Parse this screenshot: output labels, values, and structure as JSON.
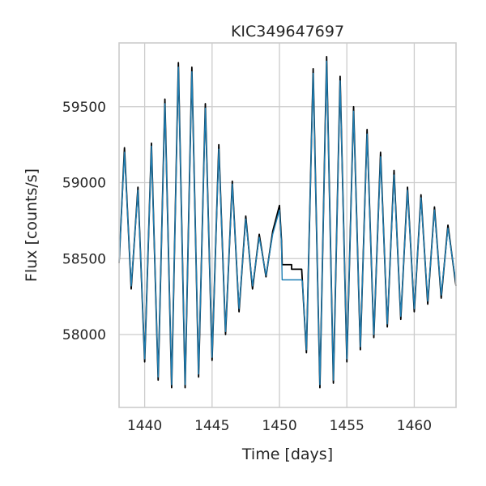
{
  "chart_data": {
    "type": "line",
    "title": "KIC349647697",
    "xlabel": "Time [days]",
    "ylabel": "Flux [counts/s]",
    "xlim": [
      1438.1,
      1463.1
    ],
    "ylim": [
      57520,
      59920
    ],
    "xticks": [
      1440,
      1445,
      1450,
      1455,
      1460
    ],
    "yticks": [
      58000,
      58500,
      59000,
      59500
    ],
    "grid": true,
    "gap": [
      1450.15,
      1451.65
    ],
    "series": [
      {
        "color": "#000000",
        "x": [
          1438.1,
          1438.5,
          1439.0,
          1439.5,
          1440.0,
          1440.5,
          1441.0,
          1441.5,
          1442.0,
          1442.5,
          1443.0,
          1443.5,
          1444.0,
          1444.5,
          1445.0,
          1445.5,
          1446.0,
          1446.5,
          1447.0,
          1447.5,
          1448.0,
          1448.5,
          1449.0,
          1449.5,
          1450.0,
          1450.15,
          1450.2,
          1450.9,
          1450.9,
          1451.65,
          1451.7,
          1452.0,
          1452.5,
          1453.0,
          1453.5,
          1454.0,
          1454.5,
          1455.0,
          1455.5,
          1456.0,
          1456.5,
          1457.0,
          1457.5,
          1458.0,
          1458.5,
          1459.0,
          1459.5,
          1460.0,
          1460.5,
          1461.0,
          1461.5,
          1462.0,
          1462.5,
          1463.1
        ],
        "y": [
          58470,
          59230,
          58300,
          58970,
          57820,
          59260,
          57700,
          59550,
          57650,
          59790,
          57650,
          59760,
          57720,
          59520,
          57830,
          59250,
          58000,
          59010,
          58150,
          58780,
          58300,
          58660,
          58380,
          58680,
          58850,
          58620,
          58460,
          58460,
          58430,
          58430,
          58350,
          57880,
          59750,
          57650,
          59830,
          57680,
          59700,
          57820,
          59500,
          57900,
          59350,
          57980,
          59200,
          58050,
          59080,
          58100,
          58970,
          58150,
          58920,
          58200,
          58840,
          58240,
          58720,
          58320
        ]
      },
      {
        "color": "#1f7fb4",
        "x": [
          1438.1,
          1438.5,
          1439.0,
          1439.5,
          1440.0,
          1440.5,
          1441.0,
          1441.5,
          1442.0,
          1442.5,
          1443.0,
          1443.5,
          1444.0,
          1444.5,
          1445.0,
          1445.5,
          1446.0,
          1446.5,
          1447.0,
          1447.5,
          1448.0,
          1448.5,
          1449.0,
          1449.5,
          1450.0,
          1450.15,
          1450.2,
          1451.65,
          1451.7,
          1452.0,
          1452.5,
          1453.0,
          1453.5,
          1454.0,
          1454.5,
          1455.0,
          1455.5,
          1456.0,
          1456.5,
          1457.0,
          1457.5,
          1458.0,
          1458.5,
          1459.0,
          1459.5,
          1460.0,
          1460.5,
          1461.0,
          1461.5,
          1462.0,
          1462.5,
          1463.1
        ],
        "y": [
          58480,
          59200,
          58320,
          58950,
          57840,
          59240,
          57720,
          59520,
          57670,
          59760,
          57670,
          59730,
          57740,
          59490,
          57850,
          59220,
          58020,
          58990,
          58170,
          58760,
          58320,
          58640,
          58390,
          58660,
          58820,
          58600,
          58360,
          58360,
          58350,
          57900,
          59720,
          57670,
          59800,
          57700,
          59670,
          57840,
          59470,
          57920,
          59320,
          58000,
          59170,
          58070,
          59050,
          58120,
          58950,
          58170,
          58900,
          58220,
          58820,
          58260,
          58700,
          58340
        ]
      }
    ]
  }
}
